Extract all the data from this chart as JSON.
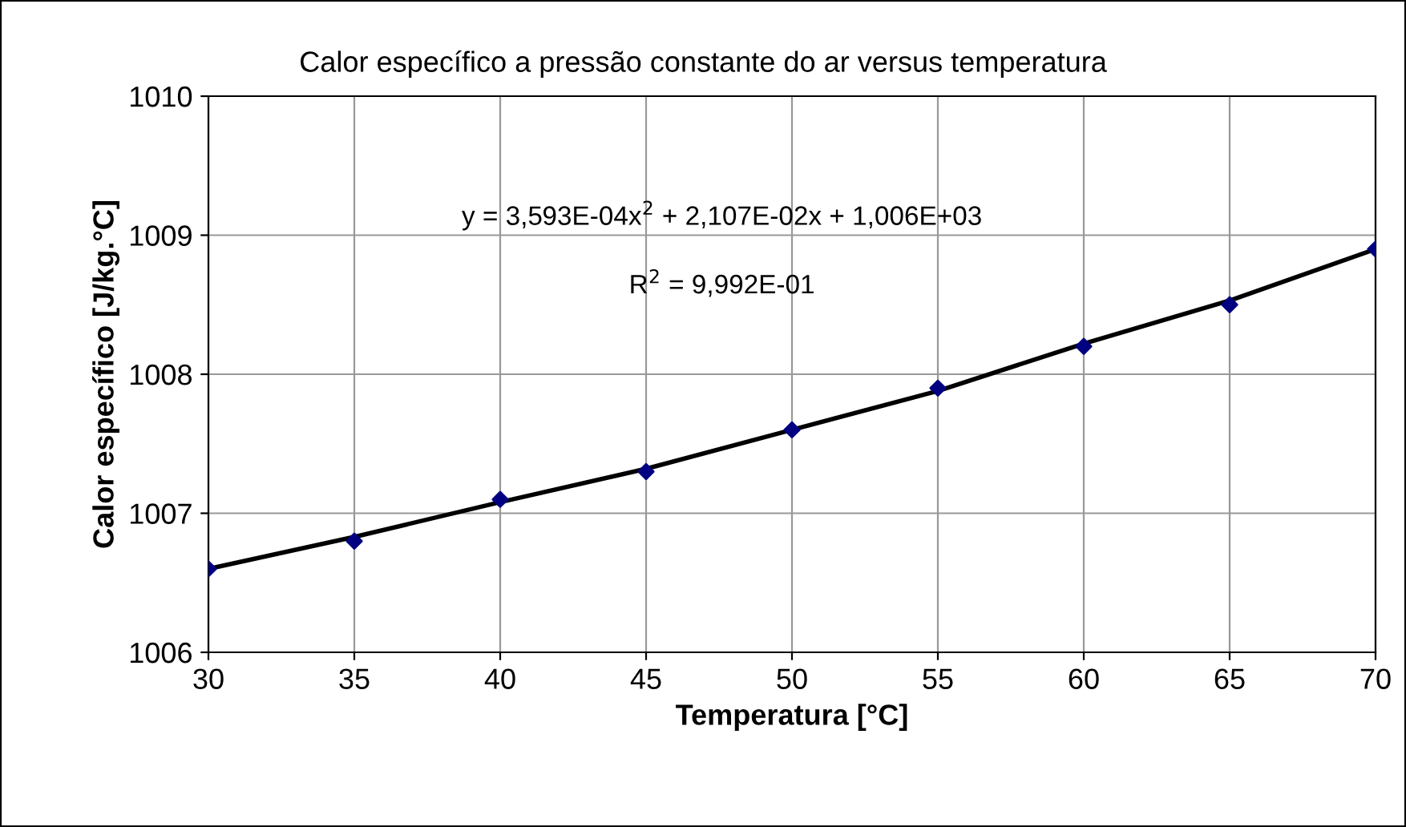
{
  "chart_data": {
    "type": "scatter",
    "title": "Calor específico a pressão constante do ar versus temperatura",
    "xlabel": "Temperatura [°C]",
    "ylabel": "Calor específico [J/kg.°C]",
    "x": [
      30,
      35,
      40,
      45,
      50,
      55,
      60,
      65,
      70
    ],
    "series": [
      {
        "color": "#000080",
        "marker": "diamond",
        "values": [
          1006.6,
          1006.8,
          1007.1,
          1007.3,
          1007.6,
          1007.9,
          1008.2,
          1008.5,
          1008.9
        ]
      },
      {
        "type": "line",
        "color": "#000000",
        "marker": "none",
        "x": [
          30,
          35,
          40,
          45,
          50,
          55,
          60,
          65,
          70
        ],
        "values": [
          1006.6,
          1006.83,
          1007.08,
          1007.32,
          1007.6,
          1007.88,
          1008.22,
          1008.53,
          1008.9
        ]
      }
    ],
    "annotations": [
      "y = 3,593E-04x$^{2}$ + 2,107E-02x + 1,006E+03",
      "R$^{2}$ = 9,992E-01"
    ],
    "xlim": [
      30,
      70
    ],
    "xticks": [
      30,
      35,
      40,
      45,
      50,
      55,
      60,
      65,
      70
    ],
    "ylim": [
      1006,
      1010
    ],
    "yticks": [
      1006,
      1007,
      1008,
      1009,
      1010
    ],
    "grid": true,
    "legend": false
  }
}
